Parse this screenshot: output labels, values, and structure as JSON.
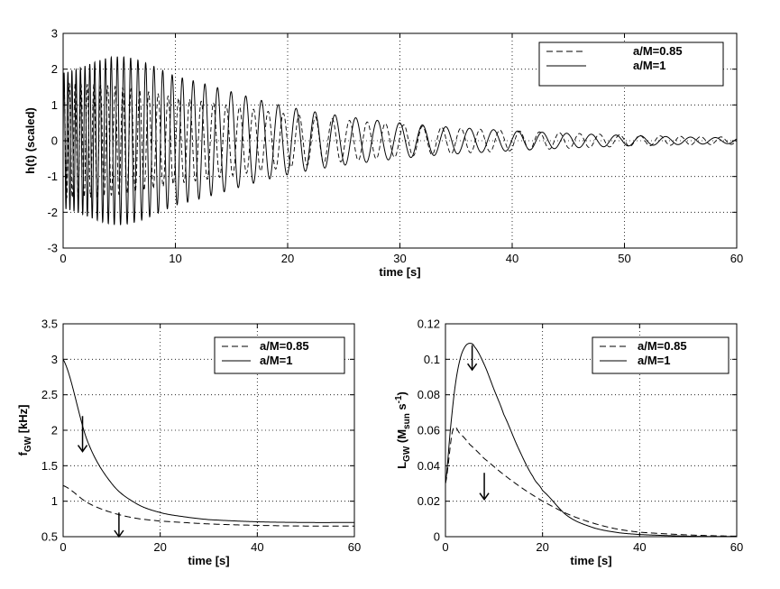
{
  "chart_data": [
    {
      "type": "line",
      "xlabel": "time [s]",
      "ylabel": "h(t) (scaled)",
      "xlim": [
        0,
        60
      ],
      "ylim": [
        -3,
        3
      ],
      "xticks": [
        "0",
        "10",
        "20",
        "30",
        "40",
        "50",
        "60"
      ],
      "yticks": [
        "-3",
        "-2",
        "-1",
        "0",
        "1",
        "2",
        "3"
      ],
      "grid": true,
      "legend": "top-right",
      "series": [
        {
          "name": "a/M=0.85",
          "style": "dashed",
          "description_samples": {
            "t": [
              0,
              5,
              10,
              20,
              30,
              40,
              50,
              60
            ],
            "envelope": [
              1.6,
              1.5,
              1.2,
              0.75,
              0.45,
              0.28,
              0.16,
              0.1
            ]
          }
        },
        {
          "name": "a/M=1",
          "style": "solid",
          "description_samples": {
            "t": [
              0,
              5,
              10,
              20,
              30,
              40,
              50,
              60
            ],
            "envelope": [
              1.9,
              2.35,
              1.8,
              0.95,
              0.5,
              0.28,
              0.15,
              0.08
            ]
          }
        }
      ]
    },
    {
      "type": "line",
      "xlabel": "time [s]",
      "ylabel": "f",
      "ylabel_sub": "GW",
      "ylabel_unit": "[kHz]",
      "xlim": [
        0,
        60
      ],
      "ylim": [
        0.5,
        3.5
      ],
      "xticks": [
        "0",
        "20",
        "40",
        "60"
      ],
      "yticks": [
        "0.5",
        "1",
        "1.5",
        "2",
        "2.5",
        "3",
        "3.5"
      ],
      "grid": true,
      "legend": "top-right",
      "series": [
        {
          "name": "a/M=0.85",
          "style": "dashed",
          "x": [
            0,
            5,
            10,
            15,
            20,
            30,
            40,
            50,
            60
          ],
          "y": [
            1.22,
            0.98,
            0.84,
            0.76,
            0.72,
            0.68,
            0.66,
            0.65,
            0.65
          ]
        },
        {
          "name": "a/M=1",
          "style": "solid",
          "x": [
            0,
            5,
            10,
            15,
            20,
            25,
            30,
            40,
            50,
            60
          ],
          "y": [
            3.0,
            1.85,
            1.25,
            0.97,
            0.84,
            0.78,
            0.74,
            0.71,
            0.7,
            0.7
          ]
        }
      ],
      "annotations": [
        {
          "type": "arrow-down",
          "x": 4,
          "y_from": 2.2,
          "y_to": 1.7
        },
        {
          "type": "arrow-down",
          "x": 11.5,
          "y_from": 0.84,
          "y_to": 0.5
        }
      ]
    },
    {
      "type": "line",
      "xlabel": "time [s]",
      "ylabel": "L",
      "ylabel_sub": "GW",
      "ylabel_unit_open": "(M",
      "ylabel_unit_sub": "sun",
      "ylabel_unit_mid": " s",
      "ylabel_unit_sup": "-1",
      "ylabel_unit_close": ")",
      "xlim": [
        0,
        60
      ],
      "ylim": [
        0,
        0.12
      ],
      "xticks": [
        "0",
        "20",
        "40",
        "60"
      ],
      "yticks": [
        "0",
        "0.02",
        "0.04",
        "0.06",
        "0.08",
        "0.1",
        "0.12"
      ],
      "grid": true,
      "legend": "top-right",
      "series": [
        {
          "name": "a/M=0.85",
          "style": "dashed",
          "x": [
            0,
            1.5,
            3,
            5,
            8,
            12,
            16,
            20,
            25,
            30,
            35,
            40,
            50,
            60
          ],
          "y": [
            0.03,
            0.06,
            0.058,
            0.052,
            0.044,
            0.035,
            0.027,
            0.02,
            0.013,
            0.008,
            0.0045,
            0.0025,
            0.001,
            0.0003
          ]
        },
        {
          "name": "a/M=1",
          "style": "solid",
          "x": [
            0,
            1,
            2,
            3,
            4,
            5,
            6,
            8,
            10,
            12,
            15,
            18,
            20,
            25,
            30,
            35,
            40,
            50,
            60
          ],
          "y": [
            0.03,
            0.06,
            0.085,
            0.1,
            0.107,
            0.109,
            0.107,
            0.097,
            0.083,
            0.069,
            0.05,
            0.034,
            0.026,
            0.012,
            0.0055,
            0.0025,
            0.0012,
            0.0003,
            0.0001
          ]
        }
      ],
      "annotations": [
        {
          "type": "arrow-down",
          "x": 5.5,
          "y_from": 0.108,
          "y_to": 0.094
        },
        {
          "type": "arrow-down",
          "x": 8,
          "y_from": 0.036,
          "y_to": 0.021
        }
      ]
    }
  ]
}
